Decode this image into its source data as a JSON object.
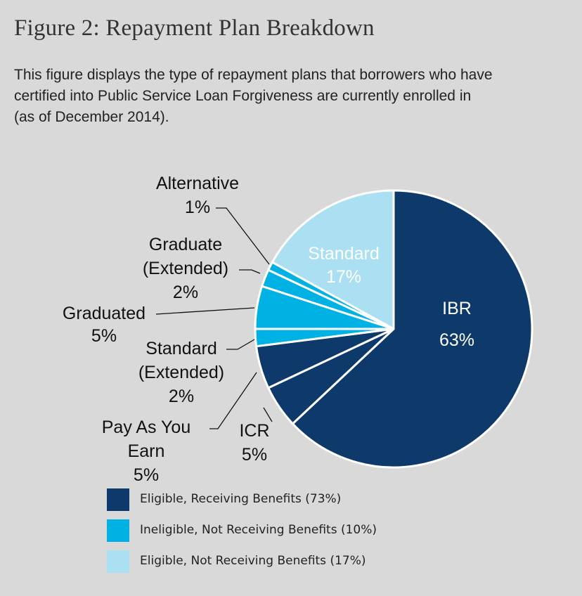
{
  "figure": {
    "title": "Figure 2: Repayment Plan Breakdown",
    "subtitle_lines": [
      "This figure displays the type of repayment plans that borrowers who have",
      "certified into Public Service Loan Forgiveness are currently enrolled in",
      "(as of December 2014)."
    ]
  },
  "chart_data": {
    "type": "pie",
    "slices": [
      {
        "label": "IBR",
        "value": 63,
        "value_label": "63%",
        "group": "eligible_receiving",
        "label_lines": [
          "IBR",
          "63%"
        ]
      },
      {
        "label": "ICR",
        "value": 5,
        "value_label": "5%",
        "group": "eligible_receiving",
        "label_lines": [
          "ICR",
          "5%"
        ]
      },
      {
        "label": "Pay As You Earn",
        "value": 5,
        "value_label": "5%",
        "group": "eligible_receiving",
        "label_lines": [
          "Pay As You",
          "Earn",
          "5%"
        ]
      },
      {
        "label": "Standard (Extended)",
        "value": 2,
        "value_label": "2%",
        "group": "ineligible",
        "label_lines": [
          "Standard",
          "(Extended)",
          "2%"
        ]
      },
      {
        "label": "Graduated",
        "value": 5,
        "value_label": "5%",
        "group": "ineligible",
        "label_lines": [
          "Graduated",
          "5%"
        ]
      },
      {
        "label": "Graduate (Extended)",
        "value": 2,
        "value_label": "2%",
        "group": "ineligible",
        "label_lines": [
          "Graduate",
          "(Extended)",
          "2%"
        ]
      },
      {
        "label": "Alternative",
        "value": 1,
        "value_label": "1%",
        "group": "ineligible",
        "label_lines": [
          "Alternative",
          "1%"
        ]
      },
      {
        "label": "Standard",
        "value": 17,
        "value_label": "17%",
        "group": "eligible_not_receiving",
        "label_lines": [
          "Standard",
          "17%"
        ]
      }
    ],
    "colors": {
      "eligible_receiving": "#0e3a6b",
      "ineligible": "#00b2e3",
      "eligible_not_receiving": "#abe0f2"
    },
    "legend": [
      {
        "group": "eligible_receiving",
        "label": "Eligible, Receiving Benefits (73%)",
        "color": "#0e3a6b"
      },
      {
        "group": "ineligible",
        "label": "Ineligible, Not Receiving Benefits (10%)",
        "color": "#00b2e3"
      },
      {
        "group": "eligible_not_receiving",
        "label": "Eligible, Not Receiving Benefits (17%)",
        "color": "#abe0f2"
      }
    ],
    "legend_position": "bottom-left"
  }
}
